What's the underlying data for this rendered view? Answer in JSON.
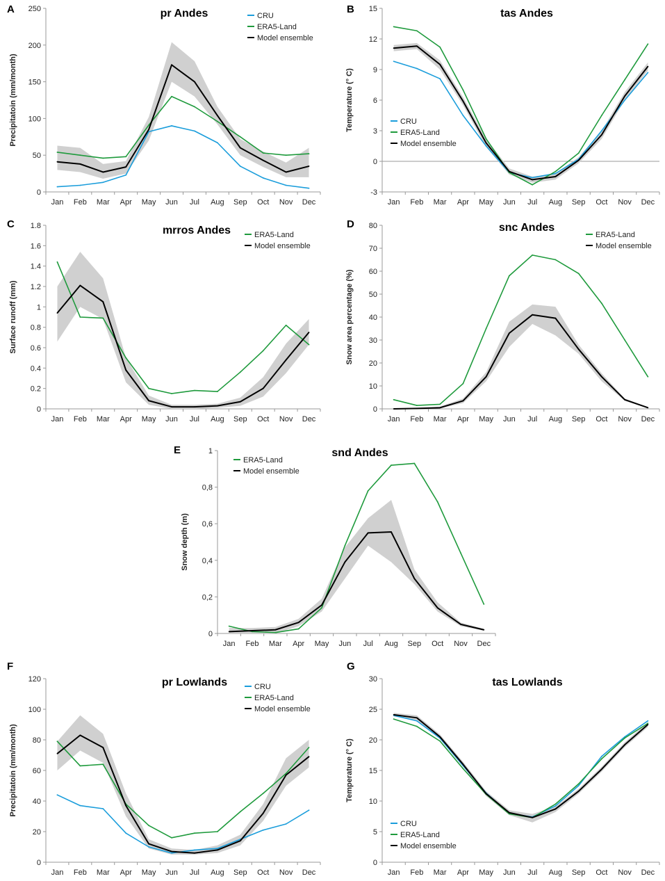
{
  "colors": {
    "cru": "#1a9ddb",
    "era5": "#1e9a3c",
    "model": "#000000",
    "band": "#d0d0d0",
    "axis": "#999999"
  },
  "months": [
    "Jan",
    "Feb",
    "Mar",
    "Apr",
    "May",
    "Jun",
    "Jul",
    "Aug",
    "Sep",
    "Oct",
    "Nov",
    "Dec"
  ],
  "chart_data": [
    {
      "id": "A",
      "panel_label": "A",
      "type": "line",
      "title": "pr Andes",
      "ylabel": "Precipitatoin (mm/month)",
      "ylim": [
        0,
        250
      ],
      "yticks": [
        0,
        50,
        100,
        150,
        200,
        250
      ],
      "tick_labels": [
        "0",
        "50",
        "100",
        "150",
        "200",
        "250"
      ],
      "zero_line": false,
      "legend": [
        "CRU",
        "ERA5-Land",
        "Model ensemble"
      ],
      "legend_position": "top-right",
      "series": [
        {
          "name": "CRU",
          "values": [
            7,
            9,
            13,
            23,
            82,
            90,
            83,
            67,
            35,
            19,
            9,
            5
          ]
        },
        {
          "name": "ERA5-Land",
          "values": [
            54,
            50,
            46,
            48,
            91,
            130,
            116,
            96,
            75,
            53,
            50,
            52
          ]
        },
        {
          "name": "Model ensemble",
          "values": [
            41,
            38,
            27,
            34,
            85,
            173,
            150,
            104,
            60,
            43,
            27,
            35
          ],
          "low": [
            30,
            27,
            18,
            25,
            70,
            150,
            130,
            92,
            50,
            34,
            20,
            20
          ],
          "high": [
            63,
            60,
            38,
            42,
            102,
            204,
            178,
            116,
            72,
            55,
            40,
            60
          ]
        }
      ]
    },
    {
      "id": "B",
      "panel_label": "B",
      "type": "line",
      "title": "tas Andes",
      "ylabel": "Temperature (° C)",
      "ylim": [
        -3,
        15
      ],
      "yticks": [
        -3,
        0,
        3,
        6,
        9,
        12,
        15
      ],
      "tick_labels": [
        "-3",
        "0",
        "3",
        "6",
        "9",
        "12",
        "15"
      ],
      "zero_line": true,
      "legend": [
        "CRU",
        "ERA5-Land",
        "Model ensemble"
      ],
      "legend_position": "middle-left",
      "series": [
        {
          "name": "CRU",
          "values": [
            9.8,
            9.1,
            8.1,
            4.5,
            1.5,
            -1.1,
            -1.6,
            -1.2,
            0.2,
            3.0,
            6.0,
            8.7
          ]
        },
        {
          "name": "ERA5-Land",
          "values": [
            13.2,
            12.8,
            11.2,
            7.0,
            2.2,
            -1.1,
            -2.3,
            -1.0,
            0.8,
            4.5,
            8.0,
            11.5
          ]
        },
        {
          "name": "Model ensemble",
          "values": [
            11.1,
            11.3,
            9.5,
            5.9,
            1.8,
            -1.0,
            -1.8,
            -1.5,
            0.1,
            2.6,
            6.4,
            9.3
          ],
          "low": [
            10.8,
            11.0,
            9.0,
            5.5,
            1.4,
            -1.3,
            -2.1,
            -1.8,
            -0.2,
            2.2,
            6.0,
            8.9
          ],
          "high": [
            11.4,
            11.6,
            9.9,
            6.3,
            2.2,
            -0.7,
            -1.5,
            -1.2,
            0.4,
            3.0,
            6.8,
            9.7
          ]
        }
      ]
    },
    {
      "id": "C",
      "panel_label": "C",
      "type": "line",
      "title": "mrros Andes",
      "ylabel": "Surface runoff (mm)",
      "ylim": [
        0,
        1.8
      ],
      "yticks": [
        0,
        0.2,
        0.4,
        0.6,
        0.8,
        1,
        1.2,
        1.4,
        1.6,
        1.8
      ],
      "tick_labels": [
        "0",
        "0.2",
        "0.4",
        "0.6",
        "0.8",
        "1",
        "1.2",
        "1.4",
        "1.6",
        "1.8"
      ],
      "zero_line": false,
      "legend": [
        "ERA5-Land",
        "Model ensemble"
      ],
      "legend_position": "top-right",
      "series": [
        {
          "name": "ERA5-Land",
          "values": [
            1.44,
            0.9,
            0.89,
            0.5,
            0.2,
            0.15,
            0.18,
            0.17,
            0.36,
            0.57,
            0.82,
            0.63
          ]
        },
        {
          "name": "Model ensemble",
          "values": [
            0.94,
            1.21,
            1.05,
            0.38,
            0.08,
            0.02,
            0.02,
            0.03,
            0.07,
            0.2,
            0.48,
            0.75
          ],
          "low": [
            0.66,
            1.0,
            0.88,
            0.26,
            0.04,
            0.0,
            0.0,
            0.01,
            0.03,
            0.12,
            0.35,
            0.63
          ],
          "high": [
            1.2,
            1.54,
            1.28,
            0.5,
            0.13,
            0.04,
            0.04,
            0.05,
            0.11,
            0.31,
            0.64,
            0.88
          ]
        }
      ]
    },
    {
      "id": "D",
      "panel_label": "D",
      "type": "line",
      "title": "snc Andes",
      "ylabel": "Snow area percentage (%)",
      "ylim": [
        0,
        80
      ],
      "yticks": [
        0,
        10,
        20,
        30,
        40,
        50,
        60,
        70,
        80
      ],
      "tick_labels": [
        "0",
        "10",
        "20",
        "30",
        "40",
        "50",
        "60",
        "70",
        "80"
      ],
      "zero_line": false,
      "legend": [
        "ERA5-Land",
        "Model ensemble"
      ],
      "legend_position": "top-right",
      "series": [
        {
          "name": "ERA5-Land",
          "values": [
            4,
            1.5,
            2,
            11,
            35,
            58,
            67,
            65,
            59,
            46,
            30,
            14
          ]
        },
        {
          "name": "Model ensemble",
          "values": [
            0,
            0.2,
            0.5,
            3.5,
            14,
            33,
            41,
            39.5,
            26,
            14,
            4,
            0.5
          ],
          "low": [
            0,
            0,
            0.2,
            2.5,
            12,
            27,
            37,
            32,
            24,
            12,
            3.5,
            0.3
          ],
          "high": [
            0.2,
            0.4,
            1,
            4.5,
            16,
            38,
            45.5,
            44.5,
            28,
            15.5,
            4.5,
            0.7
          ]
        }
      ]
    },
    {
      "id": "E",
      "panel_label": "E",
      "type": "line",
      "title": "snd Andes",
      "ylabel": "Snow depth (m)",
      "ylim": [
        0,
        1
      ],
      "yticks": [
        0,
        0.2,
        0.4,
        0.6,
        0.8,
        1
      ],
      "tick_labels": [
        "0",
        "0,2",
        "0,4",
        "0,6",
        "0,8",
        "1"
      ],
      "zero_line": false,
      "legend": [
        "ERA5-Land",
        "Model ensemble"
      ],
      "legend_position": "top-left",
      "series": [
        {
          "name": "ERA5-Land",
          "values": [
            0.04,
            0.01,
            0.005,
            0.025,
            0.14,
            0.48,
            0.78,
            0.92,
            0.93,
            0.72,
            0.44,
            0.16
          ]
        },
        {
          "name": "Model ensemble",
          "values": [
            0.01,
            0.015,
            0.02,
            0.06,
            0.155,
            0.39,
            0.55,
            0.555,
            0.3,
            0.14,
            0.05,
            0.02
          ],
          "low": [
            0.0,
            0.0,
            0.0,
            0.04,
            0.12,
            0.3,
            0.48,
            0.39,
            0.27,
            0.12,
            0.04,
            0.015
          ],
          "high": [
            0.03,
            0.03,
            0.035,
            0.08,
            0.19,
            0.47,
            0.63,
            0.73,
            0.35,
            0.17,
            0.06,
            0.025
          ]
        }
      ]
    },
    {
      "id": "F",
      "panel_label": "F",
      "type": "line",
      "title": "pr Lowlands",
      "ylabel": "Precipitatoin (mm/month)",
      "ylim": [
        0,
        120
      ],
      "yticks": [
        0,
        20,
        40,
        60,
        80,
        100,
        120
      ],
      "tick_labels": [
        "0",
        "20",
        "40",
        "60",
        "80",
        "100",
        "120"
      ],
      "zero_line": false,
      "legend": [
        "CRU",
        "ERA5-Land",
        "Model ensemble"
      ],
      "legend_position": "top-right",
      "series": [
        {
          "name": "CRU",
          "values": [
            44,
            37,
            35,
            19,
            10,
            6,
            8,
            9,
            15,
            21,
            25,
            34
          ]
        },
        {
          "name": "ERA5-Land",
          "values": [
            79,
            63,
            64,
            38,
            24,
            16,
            19,
            20,
            33,
            45,
            58,
            75
          ]
        },
        {
          "name": "Model ensemble",
          "values": [
            71,
            83,
            75,
            37,
            12,
            7,
            6,
            8,
            14,
            32,
            57,
            69
          ],
          "low": [
            60,
            73,
            65,
            30,
            9,
            5,
            5,
            6,
            11,
            27,
            50,
            62
          ],
          "high": [
            79,
            96,
            84,
            45,
            15,
            9,
            8,
            11,
            18,
            38,
            68,
            80
          ]
        }
      ]
    },
    {
      "id": "G",
      "panel_label": "G",
      "type": "line",
      "title": "tas Lowlands",
      "ylabel": "Temperature (° C)",
      "ylim": [
        0,
        30
      ],
      "yticks": [
        0,
        5,
        10,
        15,
        20,
        25,
        30
      ],
      "tick_labels": [
        "0",
        "5",
        "10",
        "15",
        "20",
        "25",
        "30"
      ],
      "zero_line": false,
      "legend": [
        "CRU",
        "ERA5-Land",
        "Model ensemble"
      ],
      "legend_position": "bottom-left",
      "series": [
        {
          "name": "CRU",
          "values": [
            24.0,
            23.1,
            20.3,
            15.8,
            11.3,
            8.0,
            7.4,
            9.2,
            12.5,
            17.3,
            20.5,
            23.1
          ]
        },
        {
          "name": "ERA5-Land",
          "values": [
            23.4,
            22.2,
            19.8,
            15.3,
            11.1,
            7.9,
            7.3,
            9.5,
            12.8,
            16.9,
            20.3,
            22.7
          ]
        },
        {
          "name": "Model ensemble",
          "values": [
            24.1,
            23.6,
            20.5,
            16.0,
            11.2,
            8.1,
            7.3,
            8.7,
            11.6,
            15.2,
            19.2,
            22.5
          ],
          "low": [
            23.8,
            23.2,
            20.1,
            15.6,
            10.8,
            7.7,
            6.5,
            8.2,
            11.2,
            14.8,
            18.8,
            22.1
          ],
          "high": [
            24.4,
            24.0,
            20.9,
            16.4,
            11.6,
            8.5,
            7.9,
            9.1,
            12.0,
            15.6,
            19.6,
            22.9
          ]
        }
      ]
    }
  ]
}
